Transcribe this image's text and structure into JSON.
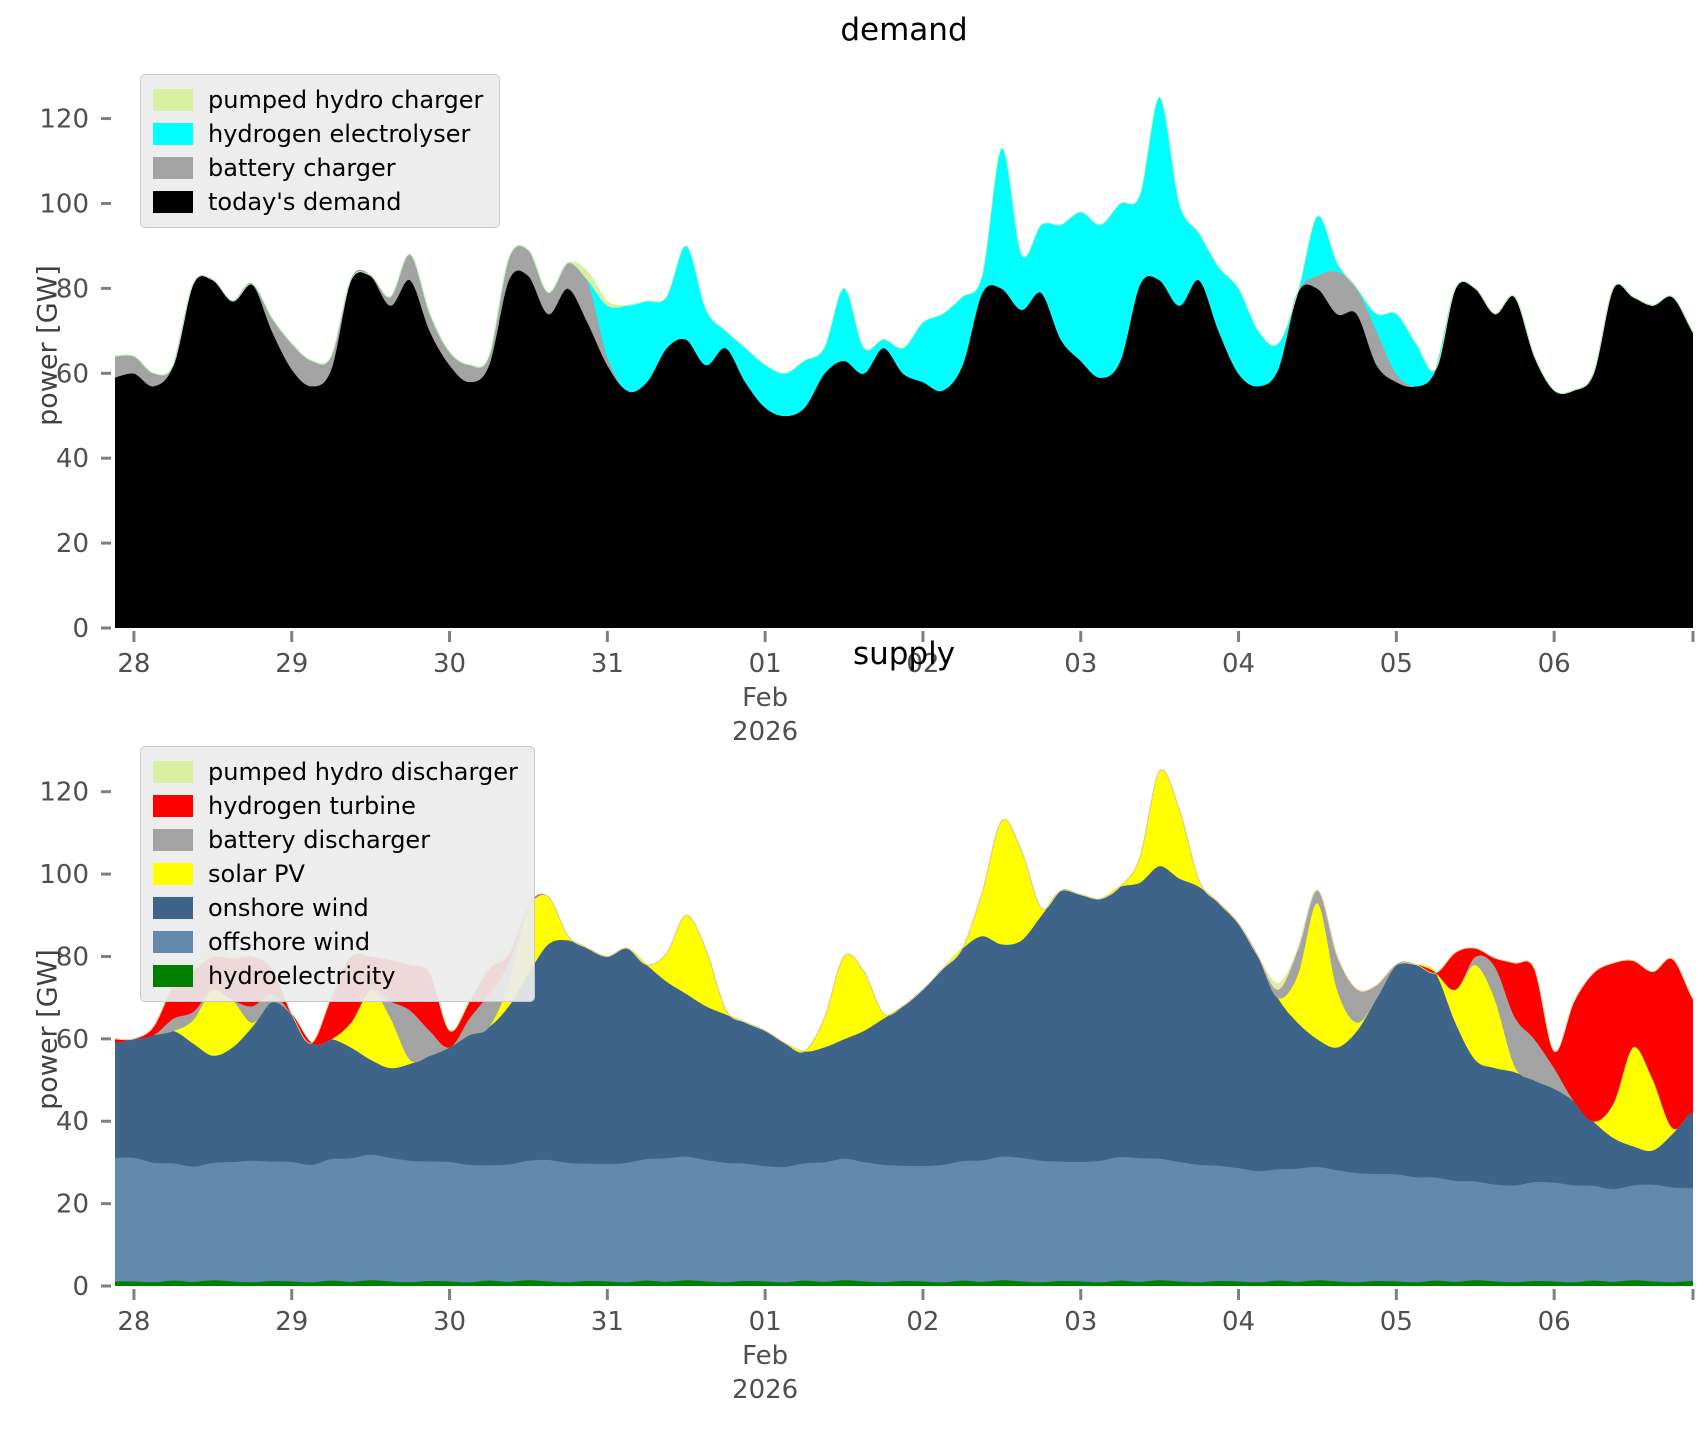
{
  "chart_data": [
    {
      "type": "area",
      "stacked": true,
      "title": "demand",
      "ylabel": "power [GW]",
      "ylim": [
        0,
        134.5
      ],
      "xlim": [
        -0.12,
        9.88
      ],
      "x_start_day": -0.125,
      "x_step_day": 0.125,
      "x_axis_note": "days from Jan 28 2026 through Feb 6 2026",
      "yticks": [
        0,
        20,
        40,
        60,
        80,
        100,
        120
      ],
      "xticks": [
        {
          "day": 0,
          "label": "28"
        },
        {
          "day": 1,
          "label": "29"
        },
        {
          "day": 2,
          "label": "30"
        },
        {
          "day": 3,
          "label": "31"
        },
        {
          "day": 4,
          "label": "01",
          "sublines": [
            "Feb",
            "2026"
          ]
        },
        {
          "day": 5,
          "label": "02"
        },
        {
          "day": 6,
          "label": "03"
        },
        {
          "day": 7,
          "label": "04"
        },
        {
          "day": 8,
          "label": "05"
        },
        {
          "day": 9,
          "label": "06"
        },
        {
          "day": 9.88,
          "label": ""
        }
      ],
      "legend": {
        "position": "upper-left",
        "entries": [
          {
            "label": "pumped hydro charger",
            "color": "#d9f0a3"
          },
          {
            "label": "hydrogen electrolyser",
            "color": "#00ffff"
          },
          {
            "label": "battery charger",
            "color": "#a3a3a3"
          },
          {
            "label": "today's demand",
            "color": "#000000"
          }
        ]
      },
      "series": [
        {
          "name": "today's demand",
          "color": "#000000",
          "values": [
            59,
            60,
            57,
            62,
            81,
            82,
            77,
            81,
            70,
            61,
            57,
            61,
            82,
            83,
            76,
            82,
            70,
            62,
            58,
            62,
            82,
            83,
            74,
            80,
            72,
            62,
            56,
            58,
            66,
            68,
            62,
            66,
            58,
            52,
            50,
            52,
            60,
            63,
            60,
            66,
            60,
            58,
            56,
            62,
            79,
            80,
            75,
            79,
            68,
            63,
            59,
            63,
            81,
            82,
            76,
            82,
            70,
            60,
            57,
            61,
            79,
            80,
            74,
            74,
            62,
            58,
            57,
            61,
            80,
            80,
            74,
            78,
            64,
            56,
            56,
            60,
            80,
            78,
            76,
            78,
            70,
            62
          ]
        },
        {
          "name": "battery charger",
          "color": "#a3a3a3",
          "values": [
            5,
            4,
            3,
            0,
            0,
            0,
            0,
            0,
            3,
            6,
            6,
            3,
            0,
            0,
            2,
            6,
            4,
            3,
            4,
            2,
            5,
            6,
            5,
            6,
            10,
            2,
            0,
            0,
            0,
            0,
            0,
            0,
            0,
            0,
            0,
            0,
            0,
            0,
            0,
            0,
            0,
            0,
            0,
            0,
            0,
            0,
            0,
            0,
            0,
            0,
            0,
            0,
            0,
            0,
            0,
            0,
            0,
            0,
            0,
            0,
            0,
            3,
            10,
            6,
            8,
            2,
            0,
            0,
            0,
            0,
            0,
            0,
            0,
            0,
            0,
            0,
            0,
            0,
            0,
            0,
            0,
            0
          ]
        },
        {
          "name": "hydrogen electrolyser",
          "color": "#00ffff",
          "values": [
            0,
            0,
            0,
            0,
            0,
            0,
            0,
            0,
            0,
            0,
            0,
            0,
            0,
            0,
            0,
            0,
            0,
            0,
            0,
            0,
            0,
            0,
            0,
            0,
            0,
            12,
            20,
            19,
            12,
            22,
            13,
            4,
            8,
            10,
            10,
            11,
            6,
            17,
            6,
            2,
            6,
            14,
            18,
            16,
            4,
            33,
            13,
            16,
            27,
            35,
            36,
            37,
            21,
            43,
            24,
            11,
            15,
            20,
            13,
            6,
            0,
            14,
            2,
            0,
            4,
            14,
            10,
            0,
            0,
            0,
            0,
            0,
            0,
            0,
            0,
            0,
            0,
            0,
            0,
            0,
            0,
            0
          ]
        },
        {
          "name": "pumped hydro charger",
          "color": "#d9f0a3",
          "values": [
            0,
            0,
            0,
            0,
            0,
            0,
            0,
            0,
            0,
            0,
            0,
            0,
            0,
            0,
            0,
            0,
            0,
            0,
            0,
            0,
            0,
            0,
            0,
            0,
            2,
            1,
            0,
            0,
            0,
            0,
            0,
            0,
            0,
            0,
            0,
            0,
            0,
            0,
            0,
            0,
            0,
            0,
            0,
            0,
            0,
            0,
            0,
            0,
            0,
            0,
            0,
            0,
            0,
            0,
            0,
            0,
            0,
            0,
            0,
            0,
            0,
            0,
            0,
            0,
            0,
            0,
            0,
            0,
            0,
            0,
            0,
            0,
            0,
            0,
            0,
            0,
            0,
            0,
            0,
            0,
            0,
            0
          ]
        }
      ]
    },
    {
      "type": "area",
      "stacked": true,
      "title": "supply",
      "ylabel": "power [GW]",
      "ylim": [
        0,
        126
      ],
      "xlim": [
        -0.12,
        9.88
      ],
      "x_start_day": -0.125,
      "x_step_day": 0.125,
      "x_axis_note": "days from Jan 28 2026 through Feb 6 2026",
      "yticks": [
        0,
        20,
        40,
        60,
        80,
        100,
        120
      ],
      "xticks": [
        {
          "day": 0,
          "label": "28"
        },
        {
          "day": 1,
          "label": "29"
        },
        {
          "day": 2,
          "label": "30"
        },
        {
          "day": 3,
          "label": "31"
        },
        {
          "day": 4,
          "label": "01",
          "sublines": [
            "Feb",
            "2026"
          ]
        },
        {
          "day": 5,
          "label": "02"
        },
        {
          "day": 6,
          "label": "03"
        },
        {
          "day": 7,
          "label": "04"
        },
        {
          "day": 8,
          "label": "05"
        },
        {
          "day": 9,
          "label": "06"
        },
        {
          "day": 9.88,
          "label": ""
        }
      ],
      "legend": {
        "position": "upper-left",
        "entries": [
          {
            "label": "pumped hydro discharger",
            "color": "#d9f0a3"
          },
          {
            "label": "hydrogen turbine",
            "color": "#ff0000"
          },
          {
            "label": "battery discharger",
            "color": "#a3a3a3"
          },
          {
            "label": "solar PV",
            "color": "#ffff00"
          },
          {
            "label": "onshore wind",
            "color": "#3e6589"
          },
          {
            "label": "offshore wind",
            "color": "#6389ac"
          },
          {
            "label": "hydroelectricity",
            "color": "#008000"
          }
        ]
      },
      "series": [
        {
          "name": "hydroelectricity",
          "color": "#008000",
          "values": [
            1.2,
            1.2,
            1,
            1.4,
            1.1,
            1.5,
            1.2,
            1,
            1.3,
            1.2,
            1,
            1.4,
            1.1,
            1.5,
            1.2,
            1,
            1.3,
            1.2,
            1,
            1.4,
            1.1,
            1.5,
            1.2,
            1,
            1.3,
            1.2,
            1,
            1.4,
            1.1,
            1.5,
            1.2,
            1,
            1.3,
            1.2,
            1,
            1.4,
            1.1,
            1.5,
            1.2,
            1,
            1.3,
            1.2,
            1,
            1.4,
            1.1,
            1.5,
            1.2,
            1,
            1.3,
            1.2,
            1,
            1.4,
            1.1,
            1.5,
            1.2,
            1,
            1.3,
            1.2,
            1,
            1.4,
            1.1,
            1.5,
            1.2,
            1,
            1.3,
            1.2,
            1,
            1.4,
            1.1,
            1.5,
            1.2,
            1,
            1.3,
            1.2,
            1,
            1.4,
            1.1,
            1.5,
            1.2,
            1,
            1.3,
            1.2
          ]
        },
        {
          "name": "offshore wind",
          "color": "#6389ac",
          "values": [
            30,
            30,
            29,
            28.5,
            28,
            28.5,
            29,
            29.5,
            29,
            29,
            28.5,
            29.5,
            30,
            30.5,
            30,
            29.5,
            29,
            29,
            28.5,
            28,
            28.5,
            29,
            29.5,
            29,
            28.5,
            28.5,
            29,
            29.5,
            30,
            30,
            29.5,
            29,
            28.5,
            28,
            28,
            28.5,
            29,
            29.5,
            29,
            28.5,
            28,
            28,
            28.5,
            29,
            29.5,
            30,
            30,
            29.5,
            29,
            29,
            29.5,
            30,
            30,
            29.5,
            29,
            28.5,
            28,
            27.5,
            27,
            27,
            27.5,
            27.5,
            27,
            26.5,
            26,
            26,
            25.5,
            25,
            24.5,
            24,
            23.5,
            23.5,
            24,
            24,
            23.5,
            23,
            22.5,
            23,
            23.5,
            23,
            22.5,
            22
          ]
        },
        {
          "name": "onshore wind",
          "color": "#3e6589",
          "values": [
            27.8,
            28.8,
            31,
            32.1,
            29.9,
            26,
            27.8,
            32.5,
            38.7,
            35.8,
            29.5,
            29.1,
            26.9,
            23,
            21.8,
            23.5,
            25.7,
            27.8,
            31.5,
            33.6,
            38.4,
            45.5,
            52.3,
            54,
            52.2,
            50.3,
            52,
            47.1,
            42.9,
            39.5,
            37.3,
            36,
            34.2,
            32.8,
            30,
            27.1,
            27.9,
            29,
            31.8,
            35.5,
            38.7,
            42.8,
            47.5,
            51.6,
            54.4,
            51.5,
            52.8,
            59.5,
            65.7,
            64.8,
            63.5,
            65.6,
            66.9,
            71,
            68.8,
            67.5,
            63.7,
            59.3,
            52,
            41.6,
            35.4,
            31,
            29.8,
            34.5,
            42.7,
            50.8,
            51.5,
            49.6,
            38.4,
            29.5,
            28.3,
            27.5,
            24.7,
            22.8,
            20.5,
            15.6,
            12.4,
            9.5,
            8.3,
            13,
            18.2,
            13.8
          ]
        },
        {
          "name": "solar PV",
          "color": "#ffff00",
          "values": [
            0,
            0,
            0,
            0,
            5.6,
            16,
            11.5,
            1,
            0,
            0,
            0,
            0,
            6,
            17,
            12.2,
            1,
            0,
            0,
            0,
            0,
            5.6,
            16,
            11.5,
            1,
            0,
            0,
            0,
            0,
            6.7,
            19,
            13.7,
            1.1,
            0,
            0,
            0,
            0,
            7,
            20,
            14.4,
            1.2,
            0,
            0,
            0,
            0,
            10.5,
            30,
            21.6,
            1.8,
            0,
            0,
            0,
            0,
            6,
            23,
            16.6,
            1.4,
            0,
            0,
            0,
            0,
            11.6,
            33,
            14,
            2,
            0,
            0,
            0,
            0,
            8,
            23,
            16.6,
            1.4,
            0,
            0,
            0,
            0,
            8.4,
            24,
            17.3,
            1.4,
            0,
            0
          ]
        },
        {
          "name": "battery discharger",
          "color": "#a3a3a3",
          "values": [
            0,
            0,
            0,
            3,
            2,
            0,
            0,
            4,
            2,
            0,
            0,
            0,
            0,
            0,
            4,
            12,
            6,
            0,
            4,
            8,
            5,
            0,
            0,
            0,
            0,
            0,
            0,
            0,
            0,
            0,
            0,
            0,
            0,
            0,
            0,
            0,
            0,
            0,
            0,
            0,
            0,
            0,
            0,
            0,
            0,
            0,
            0,
            0,
            0,
            0,
            0,
            0,
            0,
            0,
            0,
            0,
            0,
            0,
            0,
            2,
            6,
            3,
            8,
            8,
            3,
            0,
            0,
            0,
            0,
            2,
            8,
            12,
            10,
            5,
            0,
            0,
            0,
            0,
            0,
            0,
            0,
            0
          ]
        },
        {
          "name": "hydrogen turbine",
          "color": "#ff0000",
          "values": [
            1,
            0,
            2,
            8,
            10,
            8,
            10,
            12,
            6,
            0,
            0,
            10,
            16,
            8,
            10,
            11,
            14,
            4,
            4,
            6,
            2,
            0,
            0,
            0,
            0,
            0,
            0,
            0,
            0,
            0,
            0,
            0,
            0,
            0,
            0,
            0,
            0,
            0,
            0,
            0,
            0,
            0,
            0,
            0,
            0,
            0,
            0,
            0,
            0,
            0,
            0,
            0,
            0,
            0,
            0,
            0,
            0,
            0,
            0,
            0,
            0,
            0,
            0,
            0,
            0,
            0,
            0,
            0,
            9,
            2,
            2,
            13,
            17,
            4,
            24,
            36,
            34,
            21,
            26,
            41,
            28,
            25
          ]
        },
        {
          "name": "pumped hydro discharger",
          "color": "#d9f0a3",
          "values": [
            0,
            0,
            0,
            0,
            1.5,
            2.5,
            1,
            0,
            0,
            0,
            0,
            0,
            0,
            0,
            0,
            0,
            0,
            0,
            0,
            1.5,
            2.5,
            0,
            0,
            0,
            0,
            0,
            0,
            0,
            0,
            0,
            0,
            0,
            0,
            0,
            0,
            0,
            0,
            0,
            0,
            0,
            0,
            0,
            0,
            0,
            0,
            0,
            0,
            0,
            0,
            0,
            0,
            0,
            0,
            0,
            0,
            0,
            0,
            0,
            0,
            1.5,
            0,
            0,
            0,
            0,
            0,
            0,
            0,
            0,
            0,
            0,
            0,
            0,
            0,
            0,
            0,
            0,
            0,
            0,
            0,
            0,
            0,
            0,
            0
          ]
        }
      ]
    }
  ],
  "style": {
    "tick_label_color": "#4f4f4f",
    "tick_mark_color": "#7f7f7f",
    "background": "#ffffff"
  }
}
